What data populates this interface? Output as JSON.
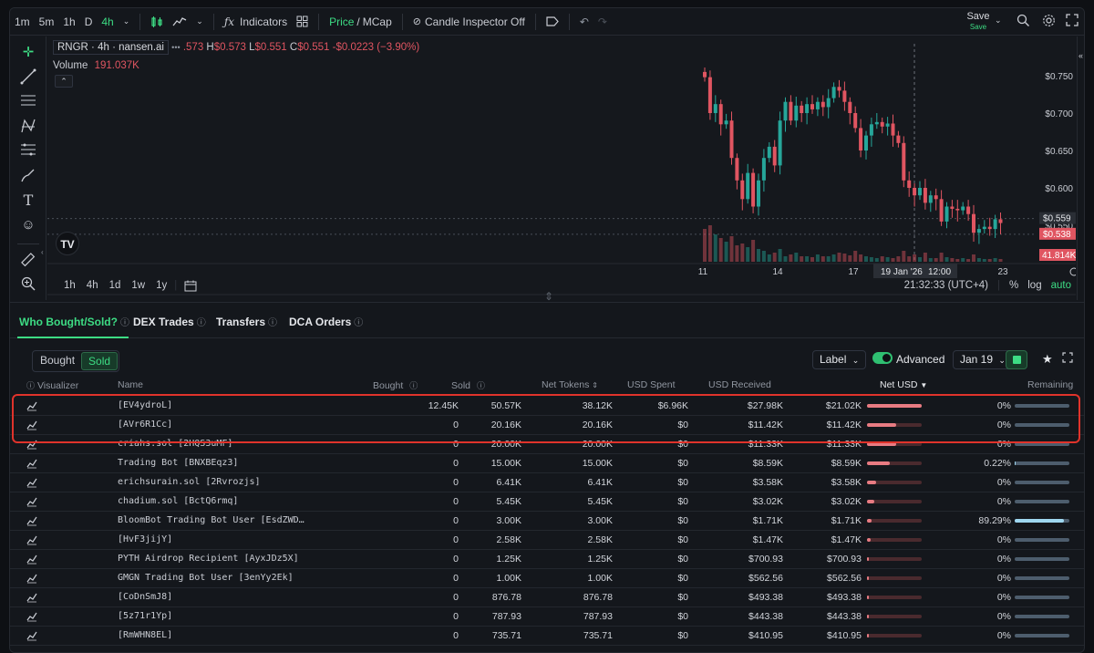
{
  "toolbar": {
    "timeframes": [
      "1m",
      "5m",
      "1h",
      "D",
      "4h"
    ],
    "indicators_label": "Indicators",
    "price_label": "Price",
    "mcap_label": "MCap",
    "candle_inspector_label": "Candle Inspector Off",
    "save_label": "Save",
    "save_sub_label": "Save"
  },
  "legend": {
    "symbol": "RNGR · 4h · nansen.ai",
    "open_value": ".573",
    "high_label": "H",
    "high_value": "$0.573",
    "low_label": "L",
    "low_value": "$0.551",
    "close_label": "C",
    "close_value": "$0.551",
    "change_value": "-$0.0223 (−3.90%)",
    "volume_label": "Volume",
    "volume_value": "191.037K"
  },
  "chart": {
    "y_ticks": [
      "$0.750",
      "$0.700",
      "$0.650",
      "$0.600",
      "$0.550"
    ],
    "price_tag_1": "$0.559",
    "price_tag_2": "$0.538",
    "volume_tag": "41.814K",
    "x_ticks": [
      "11",
      "14",
      "17",
      "23"
    ],
    "crosshair_date": "19 Jan '26",
    "crosshair_time": "12:00",
    "bottom_timeframes": [
      "1h",
      "4h",
      "1d",
      "1w",
      "1y"
    ],
    "clock": "21:32:33 (UTC+4)",
    "pct_label": "%",
    "log_label": "log",
    "auto_label": "auto"
  },
  "tabs": {
    "who": "Who Bought/Sold?",
    "dex": "DEX Trades",
    "transfers": "Transfers",
    "dca": "DCA Orders"
  },
  "filters": {
    "bought": "Bought",
    "sold": "Sold",
    "label": "Label",
    "advanced": "Advanced",
    "date": "Jan 19"
  },
  "table": {
    "headers": {
      "visualizer": "Visualizer",
      "name": "Name",
      "bought": "Bought",
      "sold": "Sold",
      "net_tokens": "Net Tokens",
      "usd_spent": "USD Spent",
      "usd_received": "USD Received",
      "net_usd": "Net USD",
      "remaining": "Remaining"
    },
    "rows": [
      {
        "name": "[EV4ydroL]",
        "bought": "12.45K",
        "sold": "50.57K",
        "net_tokens": "38.12K",
        "usd_spent": "$6.96K",
        "usd_received": "$27.98K",
        "net_usd": "$21.02K",
        "remaining": "0%",
        "net_fraction": 1.0,
        "remaining_fraction": 0.0
      },
      {
        "name": "[AVr6R1Cc]",
        "bought": "0",
        "sold": "20.16K",
        "net_tokens": "20.16K",
        "usd_spent": "$0",
        "usd_received": "$11.42K",
        "net_usd": "$11.42K",
        "remaining": "0%",
        "net_fraction": 0.54,
        "remaining_fraction": 0.0
      },
      {
        "name": "criahs.sol [2HQS3uMF]",
        "bought": "0",
        "sold": "20.00K",
        "net_tokens": "20.00K",
        "usd_spent": "$0",
        "usd_received": "$11.33K",
        "net_usd": "$11.33K",
        "remaining": "0%",
        "net_fraction": 0.54,
        "remaining_fraction": 0.0
      },
      {
        "name": "Trading Bot [BNXBEqz3]",
        "bought": "0",
        "sold": "15.00K",
        "net_tokens": "15.00K",
        "usd_spent": "$0",
        "usd_received": "$8.59K",
        "net_usd": "$8.59K",
        "remaining": "0.22%",
        "net_fraction": 0.41,
        "remaining_fraction": 0.0022
      },
      {
        "name": "erichsurain.sol [2Rvrozjs]",
        "bought": "0",
        "sold": "6.41K",
        "net_tokens": "6.41K",
        "usd_spent": "$0",
        "usd_received": "$3.58K",
        "net_usd": "$3.58K",
        "remaining": "0%",
        "net_fraction": 0.17,
        "remaining_fraction": 0.0
      },
      {
        "name": "chadium.sol [BctQ6rmq]",
        "bought": "0",
        "sold": "5.45K",
        "net_tokens": "5.45K",
        "usd_spent": "$0",
        "usd_received": "$3.02K",
        "net_usd": "$3.02K",
        "remaining": "0%",
        "net_fraction": 0.14,
        "remaining_fraction": 0.0
      },
      {
        "name": "BloomBot Trading Bot User [EsdZWD…",
        "bought": "0",
        "sold": "3.00K",
        "net_tokens": "3.00K",
        "usd_spent": "$0",
        "usd_received": "$1.71K",
        "net_usd": "$1.71K",
        "remaining": "89.29%",
        "net_fraction": 0.08,
        "remaining_fraction": 0.8929
      },
      {
        "name": "[HvF3jijY]",
        "bought": "0",
        "sold": "2.58K",
        "net_tokens": "2.58K",
        "usd_spent": "$0",
        "usd_received": "$1.47K",
        "net_usd": "$1.47K",
        "remaining": "0%",
        "net_fraction": 0.07,
        "remaining_fraction": 0.0
      },
      {
        "name": "PYTH Airdrop Recipient [AyxJDz5X]",
        "bought": "0",
        "sold": "1.25K",
        "net_tokens": "1.25K",
        "usd_spent": "$0",
        "usd_received": "$700.93",
        "net_usd": "$700.93",
        "remaining": "0%",
        "net_fraction": 0.033,
        "remaining_fraction": 0.0
      },
      {
        "name": "GMGN Trading Bot User [3enYy2Ek]",
        "bought": "0",
        "sold": "1.00K",
        "net_tokens": "1.00K",
        "usd_spent": "$0",
        "usd_received": "$562.56",
        "net_usd": "$562.56",
        "remaining": "0%",
        "net_fraction": 0.027,
        "remaining_fraction": 0.0
      },
      {
        "name": "[CoDnSmJ8]",
        "bought": "0",
        "sold": "876.78",
        "net_tokens": "876.78",
        "usd_spent": "$0",
        "usd_received": "$493.38",
        "net_usd": "$493.38",
        "remaining": "0%",
        "net_fraction": 0.023,
        "remaining_fraction": 0.0
      },
      {
        "name": "[5z71r1Yp]",
        "bought": "0",
        "sold": "787.93",
        "net_tokens": "787.93",
        "usd_spent": "$0",
        "usd_received": "$443.38",
        "net_usd": "$443.38",
        "remaining": "0%",
        "net_fraction": 0.021,
        "remaining_fraction": 0.0
      },
      {
        "name": "[RmWHN8EL]",
        "bought": "0",
        "sold": "735.71",
        "net_tokens": "735.71",
        "usd_spent": "$0",
        "usd_received": "$410.95",
        "net_usd": "$410.95",
        "remaining": "0%",
        "net_fraction": 0.02,
        "remaining_fraction": 0.0
      }
    ]
  },
  "colors": {
    "accent": "#3ddc84",
    "down": "#e05561",
    "up": "#26a69a",
    "highlight": "#e0332b"
  }
}
